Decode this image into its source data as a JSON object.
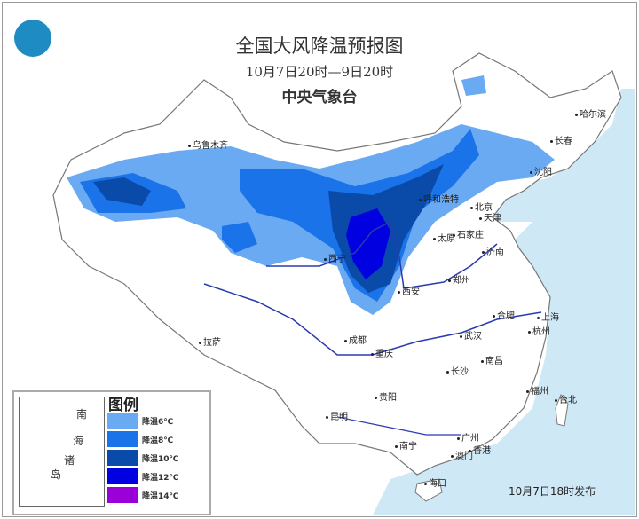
{
  "title": "全国大风降温预报图",
  "time_range": "10月7日20时—9日20时",
  "issuer": "中央气象台",
  "issued_time": "10月7日18时发布",
  "legend": {
    "title": "图例",
    "items": [
      {
        "label": "降温6℃",
        "color": "#6aaaf2"
      },
      {
        "label": "降温8℃",
        "color": "#1a73e8"
      },
      {
        "label": "降温10℃",
        "color": "#0a4aa8"
      },
      {
        "label": "降温12℃",
        "color": "#0000e0"
      },
      {
        "label": "降温14℃",
        "color": "#9a00d8"
      }
    ]
  },
  "inset": {
    "labels": [
      "南",
      "海",
      "诸",
      "岛"
    ]
  },
  "cities": [
    "乌鲁木齐",
    "哈尔滨",
    "长春",
    "沈阳",
    "呼和浩特",
    "北京",
    "天津",
    "太原",
    "石家庄",
    "济南",
    "西宁",
    "郑州",
    "西安",
    "合肥",
    "上海",
    "拉萨",
    "成都",
    "武汉",
    "杭州",
    "重庆",
    "长沙",
    "南昌",
    "贵阳",
    "福州",
    "台北",
    "昆明",
    "南宁",
    "广州",
    "香港",
    "澳门",
    "海口"
  ],
  "colors": {
    "ocean": "#cfe8f6",
    "land": "#ffffff",
    "border": "#888888",
    "river": "#2a3ab0"
  }
}
